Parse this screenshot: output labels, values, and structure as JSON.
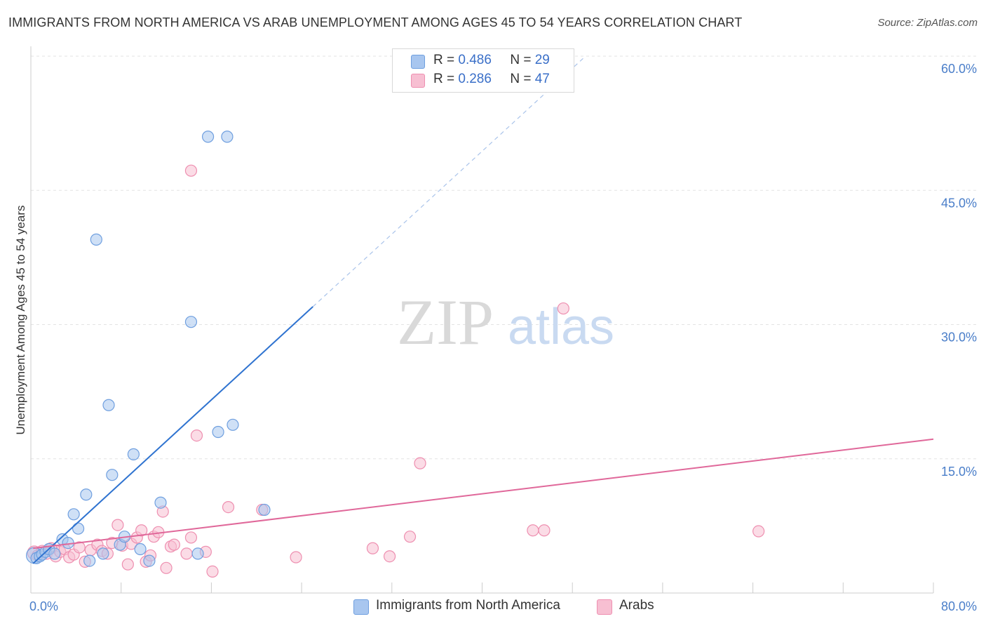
{
  "title": "IMMIGRANTS FROM NORTH AMERICA VS ARAB UNEMPLOYMENT AMONG AGES 45 TO 54 YEARS CORRELATION CHART",
  "source": "Source: ZipAtlas.com",
  "watermark": {
    "zip": "ZIP",
    "atlas": "atlas"
  },
  "legend": {
    "rows": [
      {
        "r_label": "R =",
        "r_value": "0.486",
        "n_label": "N =",
        "n_value": "29",
        "color": "#a8c6ef",
        "stroke": "#6f9fdf"
      },
      {
        "r_label": "R =",
        "r_value": "0.286",
        "n_label": "N =",
        "n_value": "47",
        "color": "#f7bfd2",
        "stroke": "#ee8fb0"
      }
    ]
  },
  "bottom_legend": {
    "series1": "Immigrants from North America",
    "series2": "Arabs"
  },
  "chart_data": {
    "type": "scatter",
    "title": "IMMIGRANTS FROM NORTH AMERICA VS ARAB UNEMPLOYMENT AMONG AGES 45 TO 54 YEARS CORRELATION CHART",
    "xlabel": "",
    "ylabel": "Unemployment Among Ages 45 to 54 years",
    "xlim": [
      0,
      80
    ],
    "ylim": [
      0,
      60
    ],
    "x_tick_labels": [
      "0.0%",
      "80.0%"
    ],
    "y_ticks": [
      15,
      30,
      45,
      60
    ],
    "y_tick_labels": [
      "15.0%",
      "30.0%",
      "45.0%",
      "60.0%"
    ],
    "grid": true,
    "series": [
      {
        "name": "Immigrants from North America",
        "color": "#a8c6ef",
        "stroke": "#6f9fdf",
        "line_color": "#2f73d0",
        "trend": {
          "x1": 0.2,
          "y1": 3.3,
          "x2": 25,
          "y2": 32,
          "dash_x2": 49,
          "dash_y2": 59.8
        },
        "points": [
          [
            0.3,
            4.2,
            14
          ],
          [
            0.5,
            3.9,
            10
          ],
          [
            0.8,
            4.1,
            10
          ],
          [
            1.0,
            4.3,
            10
          ],
          [
            1.3,
            4.6,
            10
          ],
          [
            1.6,
            4.9,
            10
          ],
          [
            2.1,
            4.4,
            10
          ],
          [
            2.8,
            6.0,
            10
          ],
          [
            3.3,
            5.6,
            10
          ],
          [
            3.8,
            8.8,
            10
          ],
          [
            4.2,
            7.2,
            10
          ],
          [
            4.9,
            11.0,
            10
          ],
          [
            5.2,
            3.6,
            10
          ],
          [
            5.8,
            39.5,
            10
          ],
          [
            6.4,
            4.4,
            10
          ],
          [
            6.9,
            21.0,
            10
          ],
          [
            7.2,
            13.2,
            10
          ],
          [
            7.9,
            5.4,
            10
          ],
          [
            8.3,
            6.3,
            10
          ],
          [
            9.1,
            15.5,
            10
          ],
          [
            9.7,
            4.9,
            10
          ],
          [
            10.5,
            3.6,
            10
          ],
          [
            11.5,
            10.1,
            10
          ],
          [
            14.2,
            30.3,
            10
          ],
          [
            14.8,
            4.4,
            10
          ],
          [
            15.7,
            51.0,
            10
          ],
          [
            16.6,
            18.0,
            10
          ],
          [
            17.4,
            51.0,
            10
          ],
          [
            17.9,
            18.8,
            10
          ],
          [
            20.7,
            9.3,
            10
          ]
        ]
      },
      {
        "name": "Arabs",
        "color": "#f7bfd2",
        "stroke": "#ee8fb0",
        "line_color": "#e0689a",
        "trend": {
          "x1": 0.2,
          "y1": 5.0,
          "x2": 80,
          "y2": 17.2
        },
        "points": [
          [
            0.3,
            4.5,
            12
          ],
          [
            0.6,
            4.2,
            10
          ],
          [
            1.0,
            4.7,
            10
          ],
          [
            1.4,
            4.4,
            10
          ],
          [
            1.8,
            5.0,
            10
          ],
          [
            2.2,
            4.1,
            10
          ],
          [
            2.6,
            4.6,
            10
          ],
          [
            3.0,
            4.9,
            10
          ],
          [
            3.4,
            4.0,
            10
          ],
          [
            3.8,
            4.3,
            10
          ],
          [
            4.3,
            5.1,
            10
          ],
          [
            4.8,
            3.5,
            10
          ],
          [
            5.3,
            4.8,
            10
          ],
          [
            5.9,
            5.4,
            10
          ],
          [
            6.3,
            4.7,
            10
          ],
          [
            6.8,
            4.4,
            10
          ],
          [
            7.2,
            5.6,
            10
          ],
          [
            7.7,
            7.6,
            10
          ],
          [
            8.1,
            5.3,
            10
          ],
          [
            8.6,
            3.2,
            10
          ],
          [
            8.9,
            5.5,
            10
          ],
          [
            9.4,
            6.2,
            10
          ],
          [
            9.8,
            7.0,
            10
          ],
          [
            10.2,
            3.5,
            10
          ],
          [
            10.6,
            4.2,
            10
          ],
          [
            10.9,
            6.3,
            10
          ],
          [
            11.3,
            6.8,
            10
          ],
          [
            11.7,
            9.1,
            10
          ],
          [
            12.0,
            2.8,
            10
          ],
          [
            12.4,
            5.2,
            10
          ],
          [
            12.7,
            5.4,
            10
          ],
          [
            13.8,
            4.4,
            10
          ],
          [
            14.2,
            6.2,
            10
          ],
          [
            14.2,
            47.2,
            10
          ],
          [
            14.7,
            17.6,
            10
          ],
          [
            15.5,
            4.6,
            10
          ],
          [
            16.1,
            2.4,
            10
          ],
          [
            17.5,
            9.6,
            10
          ],
          [
            20.5,
            9.3,
            10
          ],
          [
            23.5,
            4.0,
            10
          ],
          [
            30.3,
            5.0,
            10
          ],
          [
            31.8,
            4.1,
            10
          ],
          [
            33.6,
            6.3,
            10
          ],
          [
            34.5,
            14.5,
            10
          ],
          [
            44.5,
            7.0,
            10
          ],
          [
            45.5,
            7.0,
            10
          ],
          [
            47.2,
            31.8,
            10
          ],
          [
            64.5,
            6.9,
            10
          ]
        ]
      }
    ]
  }
}
